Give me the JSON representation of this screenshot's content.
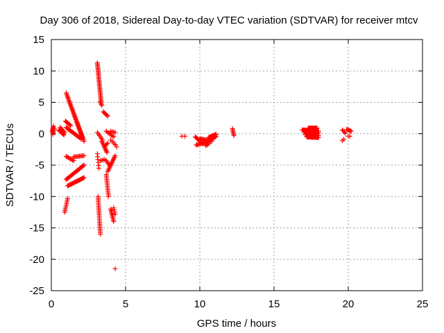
{
  "chart_data": {
    "type": "scatter",
    "title": "Day 306 of 2018, Sidereal Day-to-day VTEC variation (SDTVAR) for receiver mtcv",
    "xlabel": "GPS time / hours",
    "ylabel": "SDTVAR / TECUs",
    "xlim": [
      0,
      25
    ],
    "ylim": [
      -25,
      15
    ],
    "xticks": [
      0,
      5,
      10,
      15,
      20,
      25
    ],
    "yticks": [
      15,
      10,
      5,
      0,
      -5,
      -10,
      -15,
      -20,
      -25
    ],
    "grid": true,
    "marker": "+",
    "color": "#ff0000",
    "series": [
      {
        "name": "SDTVAR",
        "segments": [
          {
            "x0": 0.05,
            "y0": 0.3,
            "x1": 0.15,
            "y1": 1.2,
            "n": 6
          },
          {
            "x0": 0.1,
            "y0": -0.1,
            "x1": 0.2,
            "y1": 0.8,
            "n": 5
          },
          {
            "x0": 0.5,
            "y0": 0.6,
            "x1": 0.85,
            "y1": -0.2,
            "n": 8
          },
          {
            "x0": 0.6,
            "y0": 1.0,
            "x1": 0.9,
            "y1": 0.2,
            "n": 6
          },
          {
            "x0": 0.95,
            "y0": 2.0,
            "x1": 1.3,
            "y1": 1.3,
            "n": 8
          },
          {
            "x0": 1.0,
            "y0": 6.5,
            "x1": 2.2,
            "y1": -1.2,
            "n": 34
          },
          {
            "x0": 1.1,
            "y0": 5.8,
            "x1": 2.1,
            "y1": -0.6,
            "n": 28
          },
          {
            "x0": 1.0,
            "y0": 1.0,
            "x1": 2.0,
            "y1": -0.8,
            "n": 18
          },
          {
            "x0": 1.0,
            "y0": -3.6,
            "x1": 1.5,
            "y1": -4.3,
            "n": 8
          },
          {
            "x0": 1.5,
            "y0": -3.7,
            "x1": 2.2,
            "y1": -3.5,
            "n": 10
          },
          {
            "x0": 1.0,
            "y0": -7.3,
            "x1": 2.2,
            "y1": -5.0,
            "n": 24
          },
          {
            "x0": 1.1,
            "y0": -8.3,
            "x1": 2.2,
            "y1": -7.0,
            "n": 22
          },
          {
            "x0": 0.9,
            "y0": -12.5,
            "x1": 1.1,
            "y1": -10.3,
            "n": 9
          },
          {
            "x0": 3.1,
            "y0": 11.3,
            "x1": 3.35,
            "y1": 5.1,
            "n": 30
          },
          {
            "x0": 3.3,
            "y0": 5.1,
            "x1": 3.4,
            "y1": 4.5,
            "n": 4
          },
          {
            "x0": 3.1,
            "y0": 0.2,
            "x1": 3.45,
            "y1": -1.0,
            "n": 6
          },
          {
            "x0": 3.1,
            "y0": -3.2,
            "x1": 3.2,
            "y1": -5.5,
            "n": 6
          },
          {
            "x0": 3.3,
            "y0": -4.3,
            "x1": 3.6,
            "y1": -4.1,
            "n": 4
          },
          {
            "x0": 3.15,
            "y0": -10.0,
            "x1": 3.3,
            "y1": -16.0,
            "n": 24
          },
          {
            "x0": 3.4,
            "y0": -1.2,
            "x1": 3.75,
            "y1": -3.0,
            "n": 10
          },
          {
            "x0": 3.6,
            "y0": -2.0,
            "x1": 3.8,
            "y1": -1.5,
            "n": 4
          },
          {
            "x0": 3.5,
            "y0": 3.5,
            "x1": 3.8,
            "y1": 2.8,
            "n": 6
          },
          {
            "x0": 3.7,
            "y0": 0.4,
            "x1": 4.2,
            "y1": -0.5,
            "n": 7
          },
          {
            "x0": 3.7,
            "y0": -4.3,
            "x1": 3.9,
            "y1": -5.0,
            "n": 4
          },
          {
            "x0": 3.7,
            "y0": -6.5,
            "x1": 3.85,
            "y1": -10.0,
            "n": 14
          },
          {
            "x0": 3.8,
            "y0": -6.0,
            "x1": 4.3,
            "y1": -3.5,
            "n": 14
          },
          {
            "x0": 4.0,
            "y0": -1.0,
            "x1": 4.3,
            "y1": -1.7,
            "n": 4
          },
          {
            "x0": 4.3,
            "y0": -1.8,
            "x1": 4.4,
            "y1": -2.1,
            "n": 2
          },
          {
            "x0": 4.0,
            "y0": 0.4,
            "x1": 4.3,
            "y1": 0.2,
            "n": 4
          },
          {
            "x0": 4.0,
            "y0": -12.0,
            "x1": 4.2,
            "y1": -14.0,
            "n": 10
          },
          {
            "x0": 4.2,
            "y0": -11.8,
            "x1": 4.3,
            "y1": -12.8,
            "n": 4
          },
          {
            "x0": 4.3,
            "y0": -21.5,
            "x1": 4.3,
            "y1": -21.5,
            "n": 1
          },
          {
            "x0": 8.8,
            "y0": -0.4,
            "x1": 9.0,
            "y1": -0.4,
            "n": 2
          },
          {
            "x0": 9.7,
            "y0": -0.5,
            "x1": 10.2,
            "y1": -1.6,
            "n": 12
          },
          {
            "x0": 9.75,
            "y0": -1.8,
            "x1": 10.5,
            "y1": -1.3,
            "n": 12
          },
          {
            "x0": 10.0,
            "y0": -0.8,
            "x1": 10.8,
            "y1": -1.2,
            "n": 14
          },
          {
            "x0": 10.4,
            "y0": -1.9,
            "x1": 10.6,
            "y1": -1.6,
            "n": 4
          },
          {
            "x0": 10.6,
            "y0": -0.6,
            "x1": 11.1,
            "y1": -0.1,
            "n": 12
          },
          {
            "x0": 10.8,
            "y0": -0.9,
            "x1": 11.1,
            "y1": -0.4,
            "n": 6
          },
          {
            "x0": 12.2,
            "y0": 0.8,
            "x1": 12.3,
            "y1": -0.3,
            "n": 6
          },
          {
            "x0": 16.9,
            "y0": 0.6,
            "x1": 18.0,
            "y1": 0.4,
            "n": 26
          },
          {
            "x0": 17.0,
            "y0": 0.3,
            "x1": 18.0,
            "y1": 0.1,
            "n": 26
          },
          {
            "x0": 17.1,
            "y0": -0.1,
            "x1": 18.0,
            "y1": -0.3,
            "n": 24
          },
          {
            "x0": 17.2,
            "y0": -0.5,
            "x1": 18.0,
            "y1": -0.6,
            "n": 22
          },
          {
            "x0": 17.3,
            "y0": 0.9,
            "x1": 17.9,
            "y1": 0.9,
            "n": 14
          },
          {
            "x0": 19.6,
            "y0": 0.6,
            "x1": 19.8,
            "y1": 0.1,
            "n": 4
          },
          {
            "x0": 19.6,
            "y0": -1.1,
            "x1": 19.7,
            "y1": -0.9,
            "n": 2
          },
          {
            "x0": 19.9,
            "y0": 0.7,
            "x1": 20.2,
            "y1": 0.4,
            "n": 6
          },
          {
            "x0": 20.0,
            "y0": -0.4,
            "x1": 20.1,
            "y1": -0.4,
            "n": 2
          }
        ]
      }
    ]
  }
}
